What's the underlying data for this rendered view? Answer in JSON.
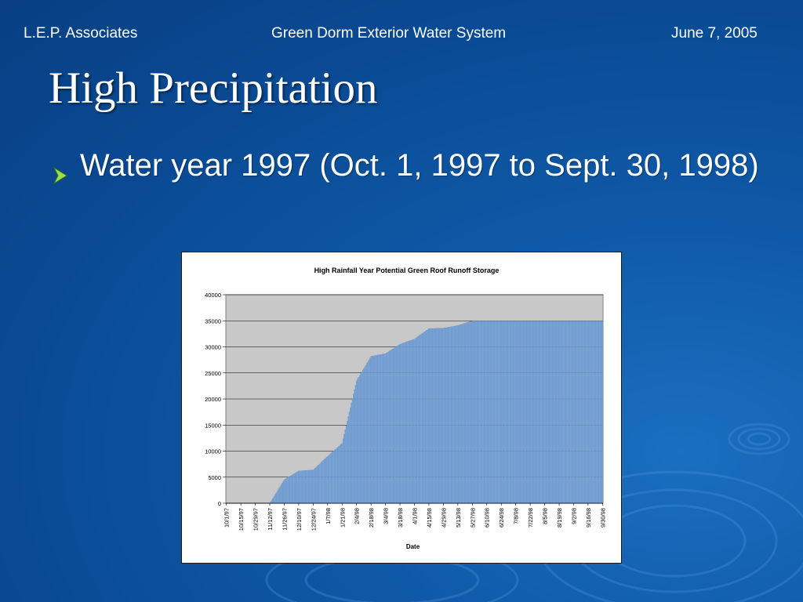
{
  "header": {
    "left": "L.E.P. Associates",
    "center": "Green Dorm Exterior Water System",
    "right": "June 7, 2005"
  },
  "title": "High Precipitation",
  "bullet": {
    "text": "Water year 1997 (Oct. 1, 1997 to Sept. 30, 1998)",
    "icon": "arrow-bullet-icon"
  },
  "colors": {
    "background": "#0a4a94",
    "text": "#ffffff",
    "bullet_arrow": "#9be04a",
    "plot_area": "#c8c8c8",
    "bars": "#7ba7d9"
  },
  "chart_data": {
    "type": "bar",
    "title": "High Rainfall Year Potential Green Roof Runoff Storage",
    "xlabel": "Date",
    "ylabel": "",
    "ylim": [
      0,
      40000
    ],
    "yticks": [
      0,
      5000,
      10000,
      15000,
      20000,
      25000,
      30000,
      35000,
      40000
    ],
    "grid": true,
    "legend": "none",
    "categories": [
      "10/1/97",
      "10/15/97",
      "10/29/97",
      "11/12/97",
      "11/26/97",
      "12/10/97",
      "12/24/97",
      "1/7/98",
      "1/21/98",
      "2/4/98",
      "2/18/98",
      "3/4/98",
      "3/18/98",
      "4/1/98",
      "4/15/98",
      "4/29/98",
      "5/13/98",
      "5/27/98",
      "6/10/98",
      "6/24/98",
      "7/8/98",
      "7/22/98",
      "8/5/98",
      "8/19/98",
      "9/2/98",
      "9/16/98",
      "9/30/98"
    ],
    "values": [
      0,
      0,
      0,
      0,
      4500,
      6200,
      6400,
      9000,
      11500,
      23500,
      28200,
      28700,
      30500,
      31500,
      33500,
      33600,
      34100,
      35000,
      35000,
      35000,
      35000,
      35000,
      35000,
      35000,
      35000,
      35000,
      35000
    ]
  }
}
